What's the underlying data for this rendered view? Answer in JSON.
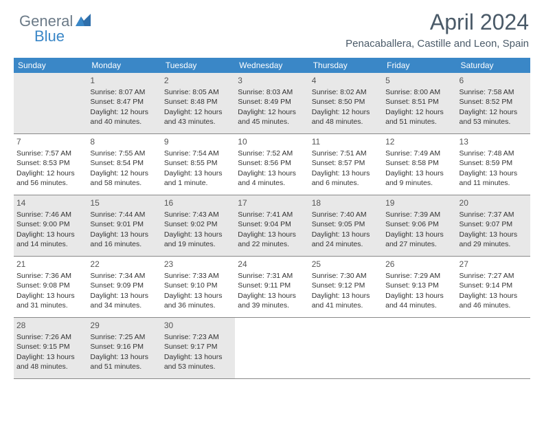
{
  "logo": {
    "general": "General",
    "blue": "Blue"
  },
  "title": "April 2024",
  "subtitle": "Penacaballera, Castille and Leon, Spain",
  "colors": {
    "header_bg": "#3a87c7",
    "header_fg": "#ffffff",
    "shaded_bg": "#e8e8e8",
    "text": "#333333",
    "title_color": "#4a5a68",
    "logo_gray": "#6b7a87",
    "logo_blue": "#3a87c7",
    "border": "#888888",
    "background": "#ffffff"
  },
  "fontsize": {
    "title": 32,
    "subtitle": 15,
    "header": 12,
    "daynum": 12,
    "body": 10.5
  },
  "headers": [
    "Sunday",
    "Monday",
    "Tuesday",
    "Wednesday",
    "Thursday",
    "Friday",
    "Saturday"
  ],
  "weeks": [
    [
      {
        "day": "",
        "sunrise": "",
        "sunset": "",
        "daylight": "",
        "shaded": true
      },
      {
        "day": "1",
        "sunrise": "8:07 AM",
        "sunset": "8:47 PM",
        "daylight": "12 hours and 40 minutes.",
        "shaded": true
      },
      {
        "day": "2",
        "sunrise": "8:05 AM",
        "sunset": "8:48 PM",
        "daylight": "12 hours and 43 minutes.",
        "shaded": true
      },
      {
        "day": "3",
        "sunrise": "8:03 AM",
        "sunset": "8:49 PM",
        "daylight": "12 hours and 45 minutes.",
        "shaded": true
      },
      {
        "day": "4",
        "sunrise": "8:02 AM",
        "sunset": "8:50 PM",
        "daylight": "12 hours and 48 minutes.",
        "shaded": true
      },
      {
        "day": "5",
        "sunrise": "8:00 AM",
        "sunset": "8:51 PM",
        "daylight": "12 hours and 51 minutes.",
        "shaded": true
      },
      {
        "day": "6",
        "sunrise": "7:58 AM",
        "sunset": "8:52 PM",
        "daylight": "12 hours and 53 minutes.",
        "shaded": true
      }
    ],
    [
      {
        "day": "7",
        "sunrise": "7:57 AM",
        "sunset": "8:53 PM",
        "daylight": "12 hours and 56 minutes.",
        "shaded": false
      },
      {
        "day": "8",
        "sunrise": "7:55 AM",
        "sunset": "8:54 PM",
        "daylight": "12 hours and 58 minutes.",
        "shaded": false
      },
      {
        "day": "9",
        "sunrise": "7:54 AM",
        "sunset": "8:55 PM",
        "daylight": "13 hours and 1 minute.",
        "shaded": false
      },
      {
        "day": "10",
        "sunrise": "7:52 AM",
        "sunset": "8:56 PM",
        "daylight": "13 hours and 4 minutes.",
        "shaded": false
      },
      {
        "day": "11",
        "sunrise": "7:51 AM",
        "sunset": "8:57 PM",
        "daylight": "13 hours and 6 minutes.",
        "shaded": false
      },
      {
        "day": "12",
        "sunrise": "7:49 AM",
        "sunset": "8:58 PM",
        "daylight": "13 hours and 9 minutes.",
        "shaded": false
      },
      {
        "day": "13",
        "sunrise": "7:48 AM",
        "sunset": "8:59 PM",
        "daylight": "13 hours and 11 minutes.",
        "shaded": false
      }
    ],
    [
      {
        "day": "14",
        "sunrise": "7:46 AM",
        "sunset": "9:00 PM",
        "daylight": "13 hours and 14 minutes.",
        "shaded": true
      },
      {
        "day": "15",
        "sunrise": "7:44 AM",
        "sunset": "9:01 PM",
        "daylight": "13 hours and 16 minutes.",
        "shaded": true
      },
      {
        "day": "16",
        "sunrise": "7:43 AM",
        "sunset": "9:02 PM",
        "daylight": "13 hours and 19 minutes.",
        "shaded": true
      },
      {
        "day": "17",
        "sunrise": "7:41 AM",
        "sunset": "9:04 PM",
        "daylight": "13 hours and 22 minutes.",
        "shaded": true
      },
      {
        "day": "18",
        "sunrise": "7:40 AM",
        "sunset": "9:05 PM",
        "daylight": "13 hours and 24 minutes.",
        "shaded": true
      },
      {
        "day": "19",
        "sunrise": "7:39 AM",
        "sunset": "9:06 PM",
        "daylight": "13 hours and 27 minutes.",
        "shaded": true
      },
      {
        "day": "20",
        "sunrise": "7:37 AM",
        "sunset": "9:07 PM",
        "daylight": "13 hours and 29 minutes.",
        "shaded": true
      }
    ],
    [
      {
        "day": "21",
        "sunrise": "7:36 AM",
        "sunset": "9:08 PM",
        "daylight": "13 hours and 31 minutes.",
        "shaded": false
      },
      {
        "day": "22",
        "sunrise": "7:34 AM",
        "sunset": "9:09 PM",
        "daylight": "13 hours and 34 minutes.",
        "shaded": false
      },
      {
        "day": "23",
        "sunrise": "7:33 AM",
        "sunset": "9:10 PM",
        "daylight": "13 hours and 36 minutes.",
        "shaded": false
      },
      {
        "day": "24",
        "sunrise": "7:31 AM",
        "sunset": "9:11 PM",
        "daylight": "13 hours and 39 minutes.",
        "shaded": false
      },
      {
        "day": "25",
        "sunrise": "7:30 AM",
        "sunset": "9:12 PM",
        "daylight": "13 hours and 41 minutes.",
        "shaded": false
      },
      {
        "day": "26",
        "sunrise": "7:29 AM",
        "sunset": "9:13 PM",
        "daylight": "13 hours and 44 minutes.",
        "shaded": false
      },
      {
        "day": "27",
        "sunrise": "7:27 AM",
        "sunset": "9:14 PM",
        "daylight": "13 hours and 46 minutes.",
        "shaded": false
      }
    ],
    [
      {
        "day": "28",
        "sunrise": "7:26 AM",
        "sunset": "9:15 PM",
        "daylight": "13 hours and 48 minutes.",
        "shaded": true
      },
      {
        "day": "29",
        "sunrise": "7:25 AM",
        "sunset": "9:16 PM",
        "daylight": "13 hours and 51 minutes.",
        "shaded": true
      },
      {
        "day": "30",
        "sunrise": "7:23 AM",
        "sunset": "9:17 PM",
        "daylight": "13 hours and 53 minutes.",
        "shaded": true
      },
      {
        "day": "",
        "sunrise": "",
        "sunset": "",
        "daylight": "",
        "shaded": false
      },
      {
        "day": "",
        "sunrise": "",
        "sunset": "",
        "daylight": "",
        "shaded": false
      },
      {
        "day": "",
        "sunrise": "",
        "sunset": "",
        "daylight": "",
        "shaded": false
      },
      {
        "day": "",
        "sunrise": "",
        "sunset": "",
        "daylight": "",
        "shaded": false
      }
    ]
  ]
}
